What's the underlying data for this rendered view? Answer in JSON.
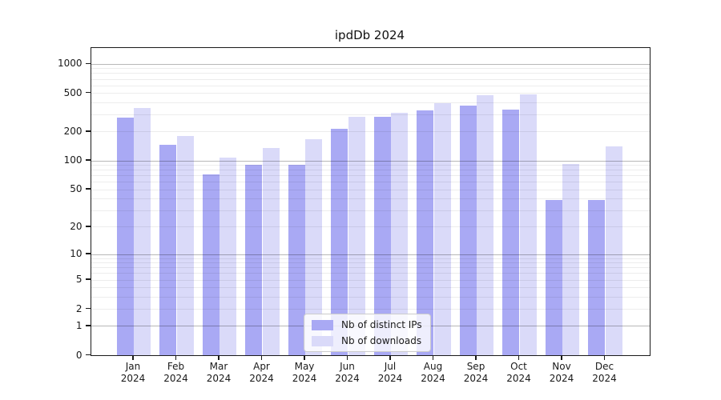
{
  "title": "ipdDb 2024",
  "chart_data": {
    "type": "bar",
    "title": "ipdDb 2024",
    "categories": [
      "Jan",
      "Feb",
      "Mar",
      "Apr",
      "May",
      "Jun",
      "Jul",
      "Aug",
      "Sep",
      "Oct",
      "Nov",
      "Dec"
    ],
    "category_year": "2024",
    "series": [
      {
        "name": "Nb of distinct IPs",
        "color": "#a9a9f4",
        "values": [
          277,
          145,
          72,
          90,
          90,
          213,
          283,
          332,
          369,
          335,
          39,
          39
        ]
      },
      {
        "name": "Nb of downloads",
        "color": "#dadaf9",
        "values": [
          348,
          180,
          108,
          134,
          167,
          286,
          315,
          389,
          477,
          480,
          92,
          140
        ]
      }
    ],
    "y_axis": {
      "scale": "log10(1+x)",
      "ticks": [
        0,
        1,
        2,
        5,
        10,
        20,
        50,
        100,
        200,
        500,
        1000
      ],
      "min": 0,
      "max": 1468
    },
    "grid": {
      "on": true,
      "major_lines_at": [
        1,
        10,
        100,
        1000
      ],
      "minor_multiples": [
        2,
        3,
        4,
        5,
        6,
        7,
        8,
        9
      ],
      "minor_decades": [
        1,
        10,
        100
      ]
    },
    "legend": {
      "position": "bottom-center-inside"
    }
  },
  "colors": {
    "background": "#ffffff",
    "axis": "#1a1a1a",
    "grid_minor": "#ececec",
    "grid_major": "#b8b8b8",
    "bar_distinct_ips": "#a9a9f4",
    "bar_downloads": "#dadaf9"
  }
}
